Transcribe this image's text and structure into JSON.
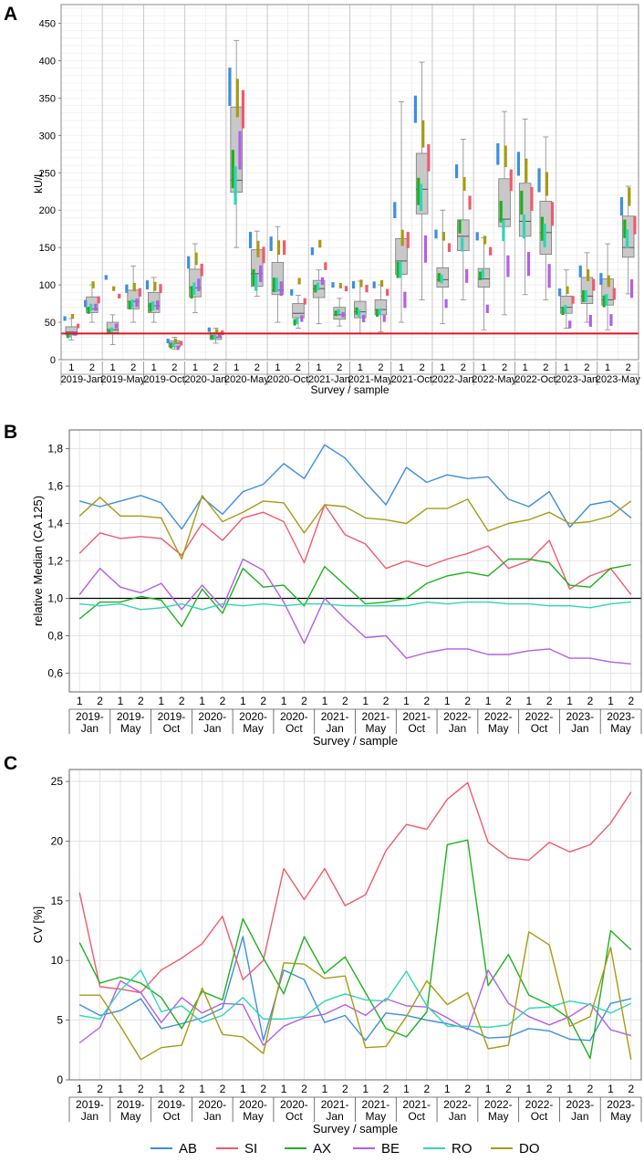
{
  "colors": {
    "AB": "#3c8ee0",
    "SI": "#f05a6e",
    "AX": "#1fb01f",
    "BE": "#b35ee8",
    "RO": "#2ed6b4",
    "DO": "#a89a14",
    "box": "#c8c8c8",
    "refline": "#e8121e",
    "grid": "#dedede"
  },
  "chart_data": [
    {
      "panel": "A",
      "type": "box",
      "ylabel": "kU/L",
      "xlabel": "Survey / sample",
      "ylim": [
        0,
        475
      ],
      "yticks": [
        0,
        50,
        100,
        150,
        200,
        250,
        300,
        350,
        400,
        450
      ],
      "sample_labels": [
        "1",
        "2"
      ],
      "surveys": [
        "2019-Jan",
        "2019-May",
        "2019-Oct",
        "2020-Jan",
        "2020-May",
        "2020-Oct",
        "2021-Jan",
        "2021-May",
        "2021-Oct",
        "2022-Jan",
        "2022-May",
        "2022-Oct",
        "2023-Jan",
        "2023-May"
      ],
      "reference_line": 35,
      "boxes": [
        {
          "q1": 33,
          "med": 37,
          "q3": 44,
          "lo": 26,
          "hi": 55
        },
        {
          "q1": 63,
          "med": 68,
          "q3": 84,
          "lo": 50,
          "hi": 100
        },
        {
          "q1": 36,
          "med": 40,
          "q3": 50,
          "lo": 20,
          "hi": 60
        },
        {
          "q1": 68,
          "med": 78,
          "q3": 93,
          "lo": 50,
          "hi": 125
        },
        {
          "q1": 63,
          "med": 72,
          "q3": 90,
          "lo": 50,
          "hi": 110
        },
        {
          "q1": 17,
          "med": 22,
          "q3": 25,
          "lo": 14,
          "hi": 30
        },
        {
          "q1": 84,
          "med": 96,
          "q3": 121,
          "lo": 63,
          "hi": 155
        },
        {
          "q1": 27,
          "med": 30,
          "q3": 36,
          "lo": 22,
          "hi": 42
        },
        {
          "q1": 224,
          "med": 240,
          "q3": 338,
          "lo": 150,
          "hi": 427
        },
        {
          "q1": 98,
          "med": 115,
          "q3": 147,
          "lo": 85,
          "hi": 172
        },
        {
          "q1": 87,
          "med": 93,
          "q3": 130,
          "lo": 50,
          "hi": 178
        },
        {
          "q1": 56,
          "med": 62,
          "q3": 75,
          "lo": 42,
          "hi": 86
        },
        {
          "q1": 83,
          "med": 95,
          "q3": 106,
          "lo": 48,
          "hi": 120
        },
        {
          "q1": 54,
          "med": 60,
          "q3": 70,
          "lo": 45,
          "hi": 82
        },
        {
          "q1": 56,
          "med": 64,
          "q3": 78,
          "lo": 35,
          "hi": 105
        },
        {
          "q1": 60,
          "med": 67,
          "q3": 80,
          "lo": 37,
          "hi": 100
        },
        {
          "q1": 114,
          "med": 132,
          "q3": 162,
          "lo": 50,
          "hi": 345
        },
        {
          "q1": 195,
          "med": 228,
          "q3": 276,
          "lo": 80,
          "hi": 398
        },
        {
          "q1": 97,
          "med": 107,
          "q3": 123,
          "lo": 48,
          "hi": 200
        },
        {
          "q1": 146,
          "med": 165,
          "q3": 187,
          "lo": 80,
          "hi": 295
        },
        {
          "q1": 97,
          "med": 108,
          "q3": 122,
          "lo": 40,
          "hi": 163
        },
        {
          "q1": 178,
          "med": 188,
          "q3": 242,
          "lo": 60,
          "hi": 332
        },
        {
          "q1": 165,
          "med": 185,
          "q3": 236,
          "lo": 87,
          "hi": 322
        },
        {
          "q1": 141,
          "med": 170,
          "q3": 212,
          "lo": 80,
          "hi": 298
        },
        {
          "q1": 62,
          "med": 70,
          "q3": 85,
          "lo": 42,
          "hi": 120
        },
        {
          "q1": 75,
          "med": 85,
          "q3": 110,
          "lo": 50,
          "hi": 143
        },
        {
          "q1": 73,
          "med": 80,
          "q3": 108,
          "lo": 40,
          "hi": 155
        },
        {
          "q1": 137,
          "med": 150,
          "q3": 192,
          "lo": 88,
          "hi": 232
        }
      ],
      "method_medians": {
        "AB": [
          55,
          75,
          110,
          95,
          100,
          25,
          130,
          40,
          365,
          160,
          155,
          90,
          145,
          100,
          100,
          100,
          200,
          335,
          168,
          252,
          165,
          275,
          262,
          240,
          90,
          118,
          108,
          205
        ],
        "SI": [
          45,
          80,
          85,
          90,
          95,
          22,
          120,
          36,
          335,
          140,
          150,
          78,
          125,
          95,
          95,
          90,
          160,
          270,
          150,
          210,
          145,
          240,
          215,
          195,
          80,
          100,
          88,
          180
        ],
        "AX": [
          32,
          66,
          38,
          73,
          70,
          18,
          90,
          30,
          255,
          110,
          100,
          50,
          95,
          62,
          65,
          62,
          120,
          225,
          110,
          178,
          112,
          198,
          210,
          175,
          65,
          85,
          78,
          175
        ],
        "BE": [
          35,
          70,
          45,
          76,
          73,
          16,
          100,
          32,
          280,
          115,
          95,
          55,
          105,
          60,
          55,
          55,
          80,
          148,
          75,
          112,
          68,
          125,
          128,
          112,
          47,
          52,
          53,
          95
        ],
        "RO": [
          33,
          70,
          40,
          75,
          72,
          20,
          95,
          30,
          233,
          103,
          100,
          52,
          98,
          64,
          62,
          64,
          120,
          217,
          108,
          154,
          115,
          173,
          178,
          166,
          68,
          85,
          80,
          162
        ],
        "DO": [
          58,
          100,
          95,
          97,
          98,
          25,
          135,
          38,
          350,
          148,
          150,
          105,
          155,
          99,
          102,
          102,
          163,
          302,
          165,
          235,
          160,
          272,
          253,
          235,
          93,
          113,
          105,
          218
        ]
      }
    },
    {
      "panel": "B",
      "type": "line",
      "ylabel": "relative Median (CA 125)",
      "xlabel": "Survey / sample",
      "ylim": [
        0.5,
        1.9
      ],
      "yticks": [
        0.6,
        0.8,
        1.0,
        1.2,
        1.4,
        1.6,
        1.8
      ],
      "ytick_labels": [
        "0,6",
        "0,8",
        "1,0",
        "1,2",
        "1,4",
        "1,6",
        "1,8"
      ],
      "reference_line": 1.0,
      "survey_labels": [
        [
          "2019-",
          "Jan"
        ],
        [
          "2019-",
          "May"
        ],
        [
          "2019-",
          "Oct"
        ],
        [
          "2020-",
          "Jan"
        ],
        [
          "2020-",
          "May"
        ],
        [
          "2020-",
          "Oct"
        ],
        [
          "2021-",
          "Jan"
        ],
        [
          "2021-",
          "May"
        ],
        [
          "2021-",
          "Oct"
        ],
        [
          "2022-",
          "Jan"
        ],
        [
          "2022-",
          "May"
        ],
        [
          "2022-",
          "Oct"
        ],
        [
          "2023-",
          "Jan"
        ],
        [
          "2023-",
          "May"
        ]
      ],
      "series": [
        {
          "name": "AB",
          "values": [
            1.52,
            1.49,
            1.52,
            1.55,
            1.51,
            1.37,
            1.54,
            1.45,
            1.57,
            1.61,
            1.72,
            1.64,
            1.82,
            1.75,
            1.62,
            1.5,
            1.7,
            1.62,
            1.66,
            1.64,
            1.65,
            1.53,
            1.49,
            1.57,
            1.38,
            1.5,
            1.52,
            1.43
          ]
        },
        {
          "name": "SI",
          "values": [
            1.24,
            1.35,
            1.32,
            1.33,
            1.32,
            1.23,
            1.4,
            1.31,
            1.43,
            1.46,
            1.41,
            1.19,
            1.5,
            1.34,
            1.29,
            1.16,
            1.2,
            1.17,
            1.21,
            1.24,
            1.28,
            1.16,
            1.2,
            1.31,
            1.05,
            1.12,
            1.16,
            1.02
          ]
        },
        {
          "name": "AX",
          "values": [
            0.89,
            0.98,
            0.98,
            1.01,
            0.99,
            0.85,
            1.05,
            0.92,
            1.16,
            1.06,
            1.07,
            0.96,
            1.17,
            1.07,
            0.97,
            0.98,
            1.0,
            1.08,
            1.12,
            1.14,
            1.12,
            1.21,
            1.21,
            1.19,
            1.07,
            1.06,
            1.16,
            1.18
          ]
        },
        {
          "name": "BE",
          "values": [
            1.02,
            1.16,
            1.06,
            1.03,
            1.08,
            0.94,
            1.07,
            0.95,
            1.21,
            1.15,
            0.98,
            0.76,
            1.0,
            0.89,
            0.79,
            0.8,
            0.68,
            0.71,
            0.73,
            0.73,
            0.7,
            0.7,
            0.72,
            0.73,
            0.68,
            0.68,
            0.66,
            0.65
          ]
        },
        {
          "name": "RO",
          "values": [
            0.97,
            0.96,
            0.97,
            0.94,
            0.95,
            0.97,
            0.94,
            0.97,
            0.96,
            0.97,
            0.96,
            0.97,
            0.97,
            0.96,
            0.96,
            0.96,
            0.96,
            0.98,
            0.97,
            0.98,
            0.98,
            0.97,
            0.97,
            0.96,
            0.96,
            0.95,
            0.97,
            0.98
          ]
        },
        {
          "name": "DO",
          "values": [
            1.44,
            1.54,
            1.44,
            1.44,
            1.43,
            1.21,
            1.55,
            1.41,
            1.46,
            1.52,
            1.51,
            1.35,
            1.5,
            1.49,
            1.43,
            1.42,
            1.4,
            1.48,
            1.48,
            1.53,
            1.36,
            1.4,
            1.42,
            1.46,
            1.4,
            1.41,
            1.44,
            1.52
          ]
        }
      ]
    },
    {
      "panel": "C",
      "type": "line",
      "ylabel": "CV [%]",
      "xlabel": "Survey / sample",
      "ylim": [
        0,
        26
      ],
      "yticks": [
        0,
        5,
        10,
        15,
        20,
        25
      ],
      "survey_labels": [
        [
          "2019-",
          "Jan"
        ],
        [
          "2019-",
          "May"
        ],
        [
          "2019-",
          "Oct"
        ],
        [
          "2020-",
          "Jan"
        ],
        [
          "2020-",
          "May"
        ],
        [
          "2020-",
          "Oct"
        ],
        [
          "2021-",
          "Jan"
        ],
        [
          "2021-",
          "May"
        ],
        [
          "2021-",
          "Oct"
        ],
        [
          "2022-",
          "Jan"
        ],
        [
          "2022-",
          "May"
        ],
        [
          "2022-",
          "Oct"
        ],
        [
          "2023-",
          "Jan"
        ],
        [
          "2023-",
          "May"
        ]
      ],
      "series": [
        {
          "name": "AB",
          "values": [
            6.3,
            5.4,
            5.8,
            6.8,
            4.3,
            4.7,
            5.2,
            6.0,
            12.0,
            3.3,
            9.2,
            8.4,
            4.8,
            5.4,
            3.3,
            5.6,
            5.4,
            5.0,
            4.7,
            4.3,
            3.5,
            3.6,
            4.3,
            4.1,
            3.4,
            3.3,
            6.4,
            6.8
          ]
        },
        {
          "name": "SI",
          "values": [
            15.7,
            7.8,
            7.6,
            7.3,
            9.2,
            10.2,
            11.4,
            13.7,
            8.4,
            10.0,
            17.7,
            15.1,
            17.7,
            14.6,
            15.5,
            19.2,
            21.4,
            21.0,
            23.5,
            24.9,
            19.9,
            18.6,
            18.4,
            19.9,
            19.1,
            19.7,
            21.5,
            24.1
          ]
        },
        {
          "name": "AX",
          "values": [
            11.5,
            8.1,
            8.6,
            8.1,
            6.9,
            4.3,
            7.4,
            6.7,
            13.5,
            10.2,
            7.2,
            12.0,
            8.9,
            10.3,
            7.3,
            4.3,
            3.6,
            5.7,
            19.7,
            20.1,
            7.9,
            10.5,
            7.1,
            6.3,
            5.1,
            1.8,
            12.5,
            10.9
          ]
        },
        {
          "name": "BE",
          "values": [
            3.1,
            4.4,
            8.3,
            7.3,
            4.8,
            6.9,
            5.6,
            6.4,
            6.3,
            2.9,
            4.5,
            5.2,
            5.5,
            6.3,
            5.4,
            6.8,
            6.2,
            6.1,
            5.2,
            4.2,
            9.2,
            6.4,
            5.3,
            4.6,
            5.3,
            6.4,
            4.2,
            3.7
          ]
        },
        {
          "name": "RO",
          "values": [
            5.4,
            5.1,
            7.5,
            9.2,
            5.7,
            6.2,
            4.8,
            5.4,
            6.9,
            5.1,
            5.1,
            5.3,
            6.6,
            7.2,
            6.7,
            6.6,
            9.1,
            6.2,
            4.5,
            4.5,
            4.4,
            4.6,
            6.0,
            6.1,
            6.6,
            6.3,
            5.6,
            6.4
          ]
        },
        {
          "name": "DO",
          "values": [
            7.1,
            7.1,
            4.5,
            1.7,
            2.7,
            2.9,
            7.7,
            3.8,
            3.6,
            2.2,
            9.8,
            9.7,
            8.5,
            8.7,
            2.7,
            2.8,
            5.3,
            8.3,
            6.3,
            7.3,
            2.6,
            2.9,
            12.4,
            11.3,
            4.5,
            5.3,
            11.1,
            1.7
          ]
        }
      ]
    }
  ],
  "panels": {
    "A": {
      "label": "A"
    },
    "B": {
      "label": "B"
    },
    "C": {
      "label": "C"
    }
  },
  "legend": {
    "items": [
      {
        "name": "AB"
      },
      {
        "name": "SI"
      },
      {
        "name": "AX"
      },
      {
        "name": "BE"
      },
      {
        "name": "RO"
      },
      {
        "name": "DO"
      }
    ]
  }
}
